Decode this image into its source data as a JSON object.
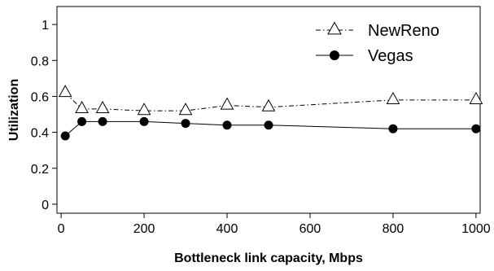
{
  "chart_data": {
    "type": "line",
    "title": "",
    "xlabel": "Bottleneck link capacity, Mbps",
    "ylabel": "Utilization",
    "xlim": [
      -10,
      1010
    ],
    "ylim": [
      -0.05,
      1.1
    ],
    "x_ticks": [
      0,
      200,
      400,
      600,
      800,
      1000
    ],
    "y_ticks": [
      0,
      0.2,
      0.4,
      0.6,
      0.8,
      1
    ],
    "x_tick_labels": [
      "0",
      "200",
      "400",
      "600",
      "800",
      "1000"
    ],
    "y_tick_labels": [
      "0",
      "0.2",
      "0.4",
      "0.6",
      "0.8",
      "1"
    ],
    "grid": false,
    "legend_position": "top-right",
    "x": [
      10,
      50,
      100,
      200,
      300,
      400,
      500,
      800,
      1000
    ],
    "series": [
      {
        "name": "NewReno",
        "values": [
          0.62,
          0.53,
          0.53,
          0.52,
          0.52,
          0.55,
          0.54,
          0.58,
          0.58
        ],
        "marker": "open-triangle",
        "line_style": "dash-dot",
        "color": "#000000"
      },
      {
        "name": "Vegas",
        "values": [
          0.38,
          0.46,
          0.46,
          0.46,
          0.45,
          0.44,
          0.44,
          0.42,
          0.42
        ],
        "marker": "filled-circle",
        "line_style": "solid",
        "color": "#000000"
      }
    ]
  }
}
